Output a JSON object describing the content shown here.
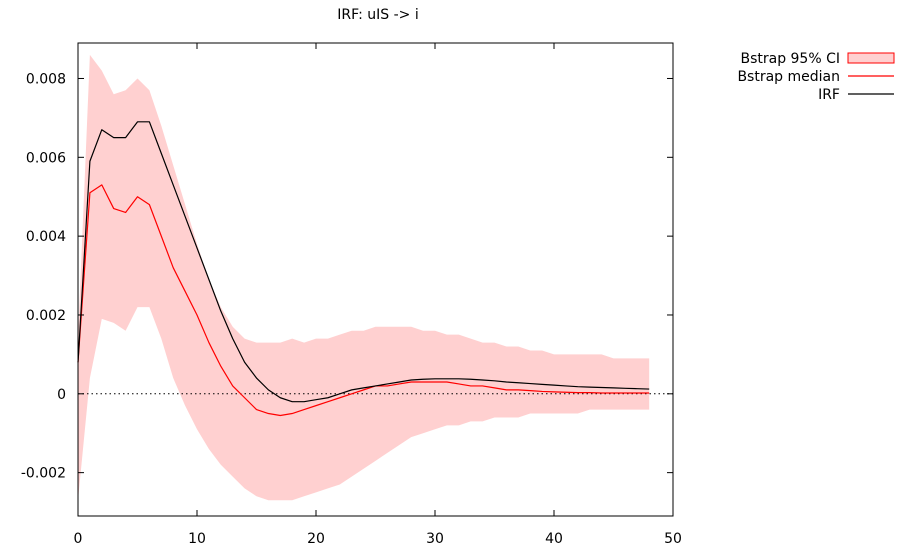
{
  "chart_data": {
    "type": "line",
    "title": "IRF: uIS -> i",
    "xlabel": "",
    "ylabel": "",
    "xlim": [
      0,
      50
    ],
    "ylim": [
      -0.0031,
      0.0089
    ],
    "x_ticks": [
      0,
      10,
      20,
      30,
      40,
      50
    ],
    "x_tick_labels": [
      "0",
      "10",
      "20",
      "30",
      "40",
      "50"
    ],
    "y_ticks": [
      -0.002,
      0,
      0.002,
      0.004,
      0.006,
      0.008
    ],
    "y_tick_labels": [
      "-0.002",
      "0",
      "0.002",
      "0.004",
      "0.006",
      "0.008"
    ],
    "zero_line": true,
    "grid": false,
    "legend_position": "top-right-outside",
    "x": [
      0,
      1,
      2,
      3,
      4,
      5,
      6,
      7,
      8,
      9,
      10,
      11,
      12,
      13,
      14,
      15,
      16,
      17,
      18,
      19,
      20,
      21,
      22,
      23,
      24,
      25,
      26,
      27,
      28,
      29,
      30,
      31,
      32,
      33,
      34,
      35,
      36,
      37,
      38,
      39,
      40,
      41,
      42,
      43,
      44,
      45,
      46,
      47,
      48
    ],
    "series": [
      {
        "name": "Bstrap 95% CI",
        "kind": "band",
        "color": "#ffd0d0",
        "edge_color": "#ff0000",
        "lower": [
          -0.0027,
          0.0004,
          0.0019,
          0.0018,
          0.0016,
          0.0022,
          0.0022,
          0.0014,
          0.0004,
          -0.0003,
          -0.0009,
          -0.0014,
          -0.0018,
          -0.0021,
          -0.0024,
          -0.0026,
          -0.0027,
          -0.0027,
          -0.0027,
          -0.0026,
          -0.0025,
          -0.0024,
          -0.0023,
          -0.0021,
          -0.0019,
          -0.0017,
          -0.0015,
          -0.0013,
          -0.0011,
          -0.001,
          -0.0009,
          -0.0008,
          -0.0008,
          -0.0007,
          -0.0007,
          -0.0006,
          -0.0006,
          -0.0006,
          -0.0005,
          -0.0005,
          -0.0005,
          -0.0005,
          -0.0005,
          -0.0004,
          -0.0004,
          -0.0004,
          -0.0004,
          -0.0004,
          -0.0004
        ],
        "upper": [
          0.0014,
          0.0086,
          0.0082,
          0.0076,
          0.0077,
          0.008,
          0.0077,
          0.0068,
          0.0058,
          0.0048,
          0.0038,
          0.0029,
          0.0022,
          0.0017,
          0.0014,
          0.0013,
          0.0013,
          0.0013,
          0.0014,
          0.0013,
          0.0014,
          0.0014,
          0.0015,
          0.0016,
          0.0016,
          0.0017,
          0.0017,
          0.0017,
          0.0017,
          0.0016,
          0.0016,
          0.0015,
          0.0015,
          0.0014,
          0.0013,
          0.0013,
          0.0012,
          0.0012,
          0.0011,
          0.0011,
          0.001,
          0.001,
          0.001,
          0.001,
          0.001,
          0.0009,
          0.0009,
          0.0009,
          0.0009
        ]
      },
      {
        "name": "Bstrap median",
        "kind": "line",
        "color": "#ff0000",
        "values": [
          0.0008,
          0.0051,
          0.0053,
          0.0047,
          0.0046,
          0.005,
          0.0048,
          0.004,
          0.0032,
          0.0026,
          0.002,
          0.0013,
          0.0007,
          0.0002,
          -0.0001,
          -0.0004,
          -0.0005,
          -0.00055,
          -0.0005,
          -0.0004,
          -0.0003,
          -0.0002,
          -0.0001,
          0.0,
          0.0001,
          0.0002,
          0.0002,
          0.00025,
          0.0003,
          0.0003,
          0.0003,
          0.0003,
          0.00025,
          0.0002,
          0.0002,
          0.00015,
          0.0001,
          0.0001,
          8e-05,
          6e-05,
          5e-05,
          4e-05,
          3e-05,
          3e-05,
          2e-05,
          2e-05,
          2e-05,
          2e-05,
          2e-05
        ]
      },
      {
        "name": "IRF",
        "kind": "line",
        "color": "#000000",
        "values": [
          0.0008,
          0.0059,
          0.0067,
          0.0065,
          0.0065,
          0.0069,
          0.0069,
          0.0061,
          0.0053,
          0.0045,
          0.0037,
          0.0029,
          0.0021,
          0.0014,
          0.0008,
          0.0004,
          0.0001,
          -0.0001,
          -0.0002,
          -0.0002,
          -0.00015,
          -0.0001,
          0.0,
          0.0001,
          0.00015,
          0.0002,
          0.00025,
          0.0003,
          0.00035,
          0.00037,
          0.00038,
          0.00038,
          0.00038,
          0.00037,
          0.00035,
          0.00033,
          0.0003,
          0.00028,
          0.00026,
          0.00024,
          0.00022,
          0.0002,
          0.00018,
          0.00017,
          0.00016,
          0.00015,
          0.00014,
          0.00013,
          0.00012
        ]
      }
    ]
  }
}
